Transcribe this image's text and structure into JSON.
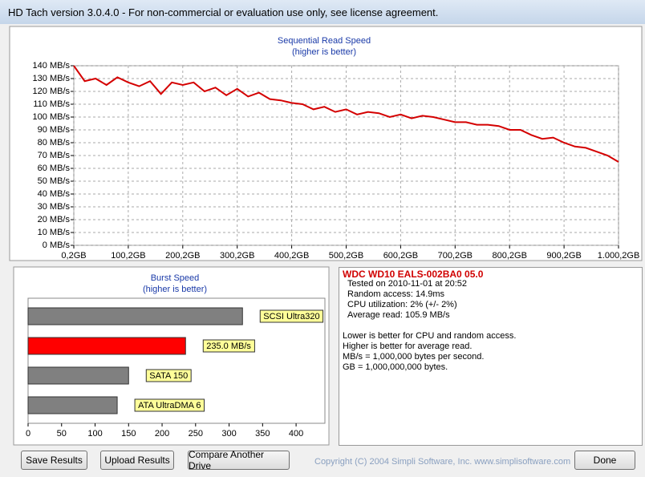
{
  "window": {
    "title": "HD Tach version 3.0.4.0  - For non-commercial or evaluation use only, see license agreement."
  },
  "chart_data": [
    {
      "type": "line",
      "title": "Sequential Read Speed",
      "subtitle": "(higher is better)",
      "x": [
        0.2,
        20.2,
        40.2,
        60.2,
        80.2,
        100.2,
        120.2,
        140.2,
        160.2,
        180.2,
        200.2,
        220.2,
        240.2,
        260.2,
        280.2,
        300.2,
        320.2,
        340.2,
        360.2,
        380.2,
        400.2,
        420.2,
        440.2,
        460.2,
        480.2,
        500.2,
        520.2,
        540.2,
        560.2,
        580.2,
        600.2,
        620.2,
        640.2,
        660.2,
        680.2,
        700.2,
        720.2,
        740.2,
        760.2,
        780.2,
        800.2,
        820.2,
        840.2,
        860.2,
        880.2,
        900.2,
        920.2,
        940.2,
        960.2,
        980.2,
        1000.2
      ],
      "values": [
        140,
        128,
        130,
        125,
        131,
        127,
        124,
        128,
        118,
        127,
        125,
        127,
        120,
        123,
        117,
        122,
        116,
        119,
        114,
        113,
        111,
        110,
        106,
        108,
        104,
        106,
        102,
        104,
        103,
        100,
        102,
        99,
        101,
        100,
        98,
        96,
        96,
        94,
        94,
        93,
        90,
        90,
        86,
        83,
        84,
        80,
        77,
        76,
        73,
        70,
        65
      ],
      "color": "#d40000",
      "xlim": [
        0.2,
        1000.2
      ],
      "xticks": [
        {
          "value": 0.2,
          "label": "0,2GB"
        },
        {
          "value": 100.2,
          "label": "100,2GB"
        },
        {
          "value": 200.2,
          "label": "200,2GB"
        },
        {
          "value": 300.2,
          "label": "300,2GB"
        },
        {
          "value": 400.2,
          "label": "400,2GB"
        },
        {
          "value": 500.2,
          "label": "500,2GB"
        },
        {
          "value": 600.2,
          "label": "600,2GB"
        },
        {
          "value": 700.2,
          "label": "700,2GB"
        },
        {
          "value": 800.2,
          "label": "800,2GB"
        },
        {
          "value": 900.2,
          "label": "900,2GB"
        },
        {
          "value": 1000.2,
          "label": "1.000,2GB"
        }
      ],
      "ylim": [
        0,
        140
      ],
      "yticks": [
        {
          "value": 0,
          "label": "0 MB/s"
        },
        {
          "value": 10,
          "label": "10 MB/s"
        },
        {
          "value": 20,
          "label": "20 MB/s"
        },
        {
          "value": 30,
          "label": "30 MB/s"
        },
        {
          "value": 40,
          "label": "40 MB/s"
        },
        {
          "value": 50,
          "label": "50 MB/s"
        },
        {
          "value": 60,
          "label": "60 MB/s"
        },
        {
          "value": 70,
          "label": "70 MB/s"
        },
        {
          "value": 80,
          "label": "80 MB/s"
        },
        {
          "value": 90,
          "label": "90 MB/s"
        },
        {
          "value": 100,
          "label": "100 MB/s"
        },
        {
          "value": 110,
          "label": "110 MB/s"
        },
        {
          "value": 120,
          "label": "120 MB/s"
        },
        {
          "value": 130,
          "label": "130 MB/s"
        },
        {
          "value": 140,
          "label": "140 MB/s"
        }
      ],
      "grid": true
    },
    {
      "type": "hbar",
      "title": "Burst Speed",
      "subtitle": "(higher is better)",
      "categories": [
        "SCSI Ultra320",
        null,
        "SATA 150",
        "ATA UltraDMA 6"
      ],
      "values": [
        320,
        235,
        150,
        133
      ],
      "value_labels": [
        null,
        "235.0 MB/s",
        null,
        null
      ],
      "colors": [
        "#808080",
        "#ff0000",
        "#808080",
        "#808080"
      ],
      "xlim": [
        0,
        443
      ],
      "xticks": [
        0,
        50,
        100,
        150,
        200,
        250,
        300,
        350,
        400
      ]
    }
  ],
  "info": {
    "drive": "WDC WD10 EALS-002BA0 05.0",
    "details": [
      "Tested on 2010-11-01 at 20:52",
      "Random access: 14.9ms",
      "CPU utilization: 2% (+/- 2%)",
      "Average read: 105.9 MB/s"
    ],
    "notes": [
      "Lower is better for CPU and random access.",
      "Higher is better for average read.",
      "MB/s = 1,000,000 bytes per second.",
      "GB = 1,000,000,000 bytes."
    ]
  },
  "buttons": [
    "Save Results",
    "Upload Results",
    "Compare Another Drive",
    "Done"
  ],
  "copyright": "Copyright (C) 2004 Simpli Software, Inc. www.simplisoftware.com"
}
